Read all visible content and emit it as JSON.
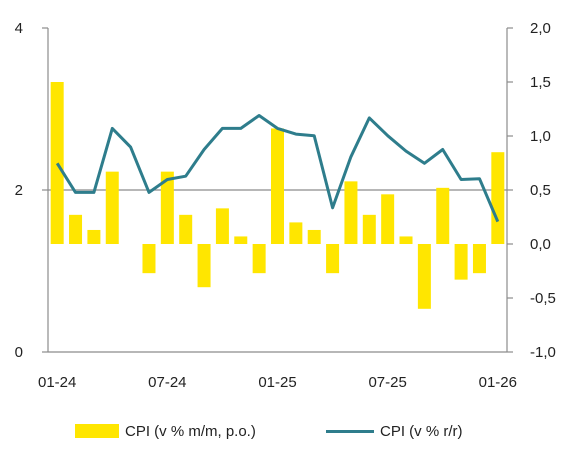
{
  "chart_data": {
    "type": "bar+line",
    "colors": {
      "bar": "#ffe600",
      "line": "#2e7d8c",
      "axis": "#8c8c8c",
      "grid": "#8c8c8c"
    },
    "x": [
      "01-24",
      "02-24",
      "03-24",
      "04-24",
      "05-24",
      "06-24",
      "07-24",
      "08-24",
      "09-24",
      "10-24",
      "11-24",
      "12-24",
      "01-25",
      "02-25",
      "03-25",
      "04-25",
      "05-25",
      "06-25",
      "07-25",
      "08-25",
      "09-25",
      "10-25",
      "11-25",
      "12-25",
      "01-26"
    ],
    "x_tick_labels": [
      "01-24",
      "07-24",
      "01-25",
      "07-25",
      "01-26"
    ],
    "x_tick_index": [
      0,
      6,
      12,
      18,
      24
    ],
    "series": [
      {
        "name": "CPI (v % m/m, p.o.)",
        "type": "bar",
        "axis": "right",
        "values": [
          1.5,
          0.27,
          0.13,
          0.67,
          0,
          -0.27,
          0.67,
          0.27,
          -0.4,
          0.33,
          0.07,
          -0.27,
          1.07,
          0.2,
          0.13,
          -0.27,
          0.58,
          0.27,
          0.46,
          0.07,
          -0.6,
          0.52,
          -0.33,
          -0.27,
          0.85
        ]
      },
      {
        "name": "CPI (v % r/r)",
        "type": "line",
        "axis": "left",
        "values": [
          2.33,
          1.97,
          1.97,
          2.76,
          2.53,
          1.97,
          2.13,
          2.17,
          2.5,
          2.76,
          2.76,
          2.92,
          2.76,
          2.69,
          2.67,
          1.78,
          2.41,
          2.89,
          2.67,
          2.48,
          2.33,
          2.5,
          2.13,
          2.14,
          1.61
        ]
      }
    ],
    "y_left": {
      "ylim": [
        0,
        4
      ],
      "ticks": [
        "0",
        "2",
        "4"
      ],
      "tick_values": [
        0,
        2,
        4
      ]
    },
    "y_right": {
      "ylim": [
        -1.0,
        2.0
      ],
      "ticks": [
        "-1,0",
        "-0,5",
        "0,0",
        "0,5",
        "1,0",
        "1,5",
        "2,0"
      ],
      "tick_values": [
        -1.0,
        -0.5,
        0,
        0.5,
        1.0,
        1.5,
        2.0
      ]
    },
    "grid": "horizontal at left 2",
    "legend_position": "bottom"
  }
}
